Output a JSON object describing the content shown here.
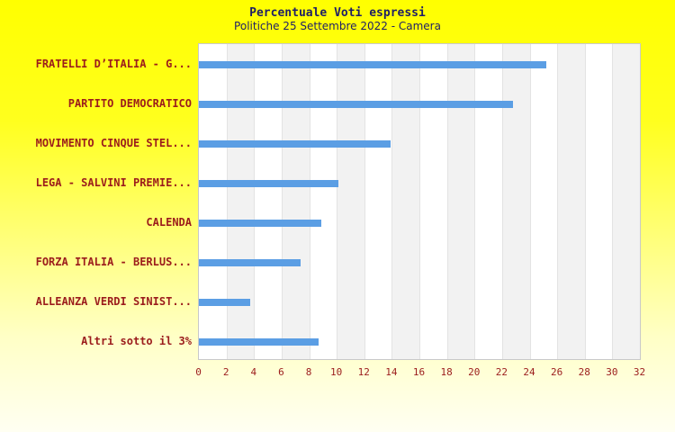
{
  "page": {
    "title": "Percentuale Voti espressi",
    "subtitle": "Politiche 25 Settembre 2022 - Camera"
  },
  "colors": {
    "background_top": "#FFFF00",
    "background_bottom": "#FFFFF2",
    "title_text": "#1F1F66",
    "label_text": "#9B1C1C",
    "bar": "#5B9EE4",
    "band_alt": "#F2F2F2",
    "gridline": "#E3E3E3",
    "plot_border": "#C9C9C9",
    "plot_background": "#FFFFFF"
  },
  "chart_data": {
    "type": "bar",
    "orientation": "horizontal",
    "title": "Percentuale Voti espressi",
    "subtitle": "Politiche 25 Settembre 2022 - Camera",
    "categories": [
      "FRATELLI D’ITALIA - G...",
      "PARTITO DEMOCRATICO",
      "MOVIMENTO CINQUE STEL...",
      "LEGA - SALVINI PREMIE...",
      "CALENDA",
      "FORZA ITALIA - BERLUS...",
      "ALLEANZA VERDI SINIST...",
      "Altri sotto il 3%"
    ],
    "values": [
      25.2,
      22.8,
      13.9,
      10.1,
      8.9,
      7.4,
      3.7,
      8.7
    ],
    "xlabel": "",
    "ylabel": "",
    "xlim": [
      0,
      32
    ],
    "x_ticks": [
      0,
      2,
      4,
      6,
      8,
      10,
      12,
      14,
      16,
      18,
      20,
      22,
      24,
      26,
      28,
      30,
      32
    ],
    "grid": "alternating-vertical-bands",
    "legend": null
  }
}
